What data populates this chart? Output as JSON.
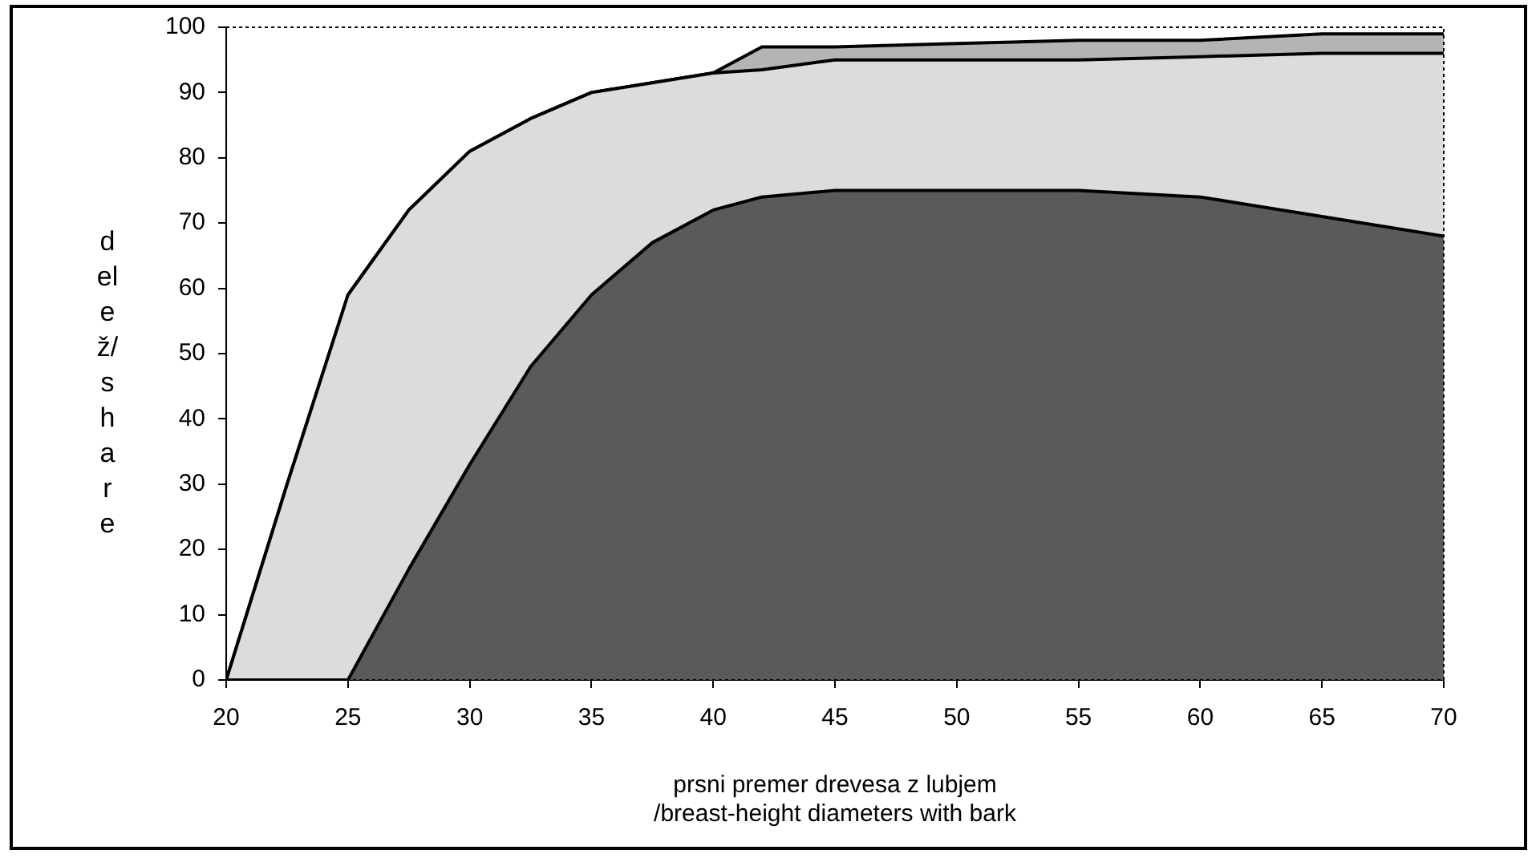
{
  "chart_data": {
    "type": "area",
    "stacked": true,
    "xlabel": "prsni premer drevesa z lubjem\n/breast-height diameters with bark",
    "ylabel": "delež/share",
    "x": [
      20,
      22.5,
      25,
      27.5,
      30,
      32.5,
      35,
      37.5,
      40,
      42,
      45,
      50,
      55,
      60,
      65,
      70
    ],
    "series": [
      {
        "color": "#5a5a5a",
        "values": [
          0,
          0,
          0,
          17,
          33,
          48,
          59,
          67,
          72,
          74,
          75,
          75,
          75,
          74,
          71,
          68
        ]
      },
      {
        "color": "#dcdcdc",
        "values": [
          0,
          30,
          59,
          55,
          48,
          38,
          31,
          24.5,
          21,
          19.5,
          20,
          20,
          20,
          21.5,
          25,
          28
        ]
      },
      {
        "color": "#b4b4b4",
        "values": [
          0,
          0,
          0,
          0,
          0,
          0,
          0,
          0,
          0,
          3.5,
          2,
          2.5,
          3,
          2.5,
          3,
          3
        ]
      }
    ],
    "xlim": [
      20,
      70
    ],
    "xticks": [
      20,
      25,
      30,
      35,
      40,
      45,
      50,
      55,
      60,
      65,
      70
    ],
    "ylim": [
      0,
      100
    ],
    "yticks": [
      0,
      10,
      20,
      30,
      40,
      50,
      60,
      70,
      80,
      90,
      100
    ],
    "grid": false,
    "legend": false
  }
}
